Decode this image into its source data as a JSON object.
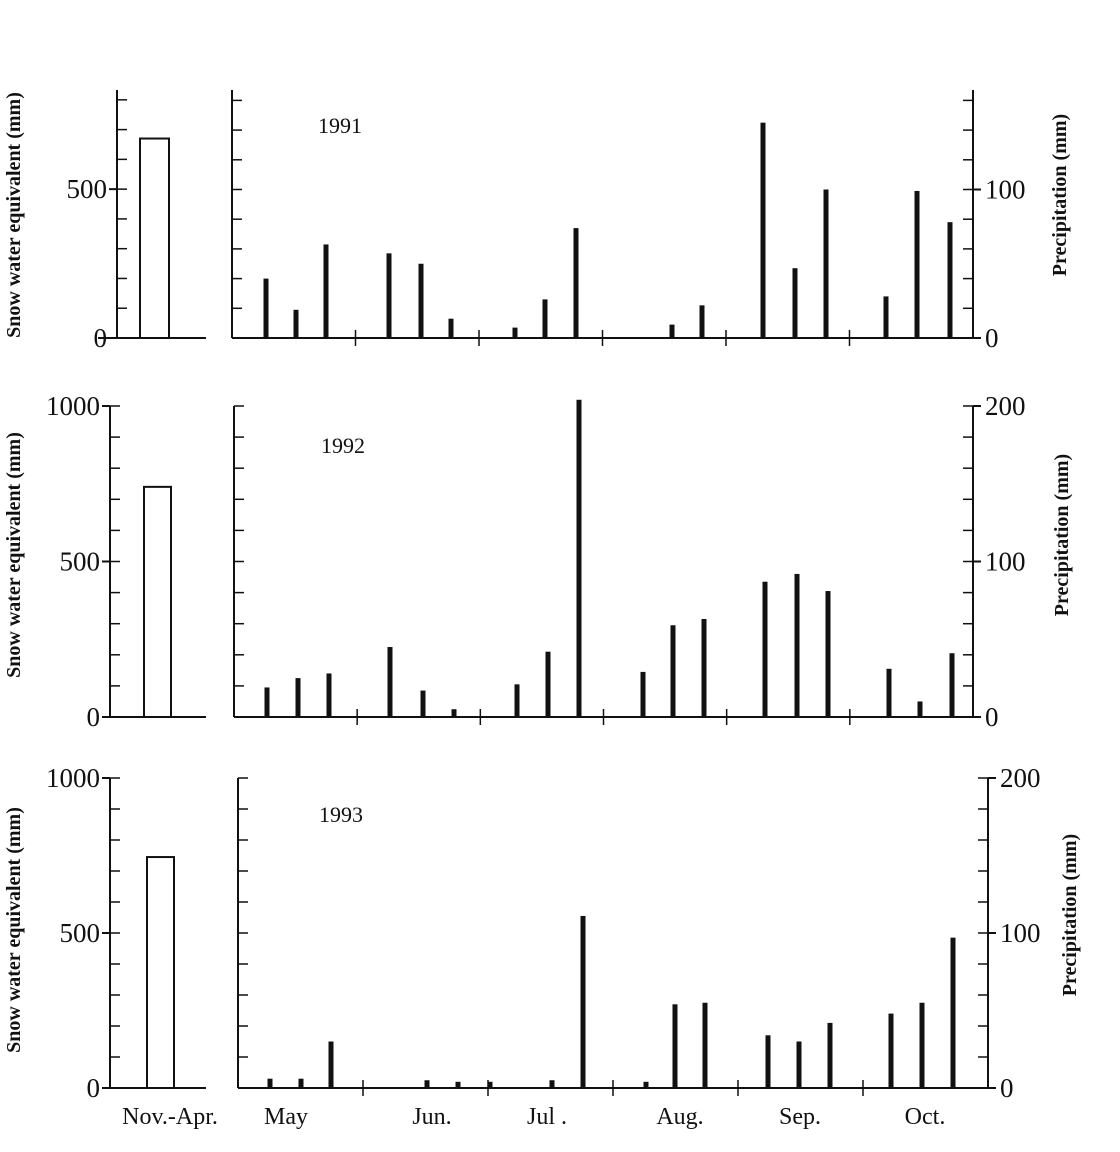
{
  "chart_data": [
    {
      "type": "bar",
      "year_label": "1991",
      "snow": {
        "ylabel": "Snow water equivalent (mm)",
        "ylim": [
          0,
          833
        ],
        "ticks": [
          0,
          500
        ],
        "category": "Nov.-Apr.",
        "value": 670
      },
      "precip": {
        "ylabel": "Precipitation (mm)",
        "ylim": [
          0,
          167
        ],
        "ticks": [
          0,
          100
        ],
        "values": [
          40,
          19,
          63,
          57,
          50,
          13,
          0,
          7,
          26,
          74,
          0,
          0,
          9,
          22,
          145,
          47,
          100,
          0,
          28,
          99,
          78
        ]
      }
    },
    {
      "type": "bar",
      "year_label": "1992",
      "snow": {
        "ylabel": "Snow water equivalent (mm)",
        "ylim": [
          0,
          1000
        ],
        "ticks": [
          0,
          500,
          1000
        ],
        "category": "Nov.-Apr.",
        "value": 740
      },
      "precip": {
        "ylabel": "Precipitation (mm)",
        "ylim": [
          0,
          200
        ],
        "ticks": [
          0,
          100,
          200
        ],
        "values": [
          19,
          25,
          28,
          45,
          17,
          5,
          0,
          21,
          42,
          204,
          0,
          29,
          59,
          63,
          87,
          92,
          81,
          0,
          31,
          10,
          41
        ]
      }
    },
    {
      "type": "bar",
      "year_label": "1993",
      "snow": {
        "ylabel": "Snow water equivalent (mm)",
        "ylim": [
          0,
          1000
        ],
        "ticks": [
          0,
          500,
          1000
        ],
        "category": "Nov.-Apr.",
        "value": 745
      },
      "precip": {
        "ylabel": "Precipitation (mm)",
        "ylim": [
          0,
          200
        ],
        "ticks": [
          0,
          100,
          200
        ],
        "values": [
          6,
          6,
          30,
          0,
          5,
          4,
          4,
          0,
          5,
          6,
          111,
          0,
          4,
          54,
          55,
          0,
          34,
          30,
          42,
          48,
          55,
          97
        ]
      }
    }
  ],
  "months": [
    "May",
    "Jun.",
    "Jul .",
    "Aug.",
    "Sep.",
    "Oct."
  ]
}
